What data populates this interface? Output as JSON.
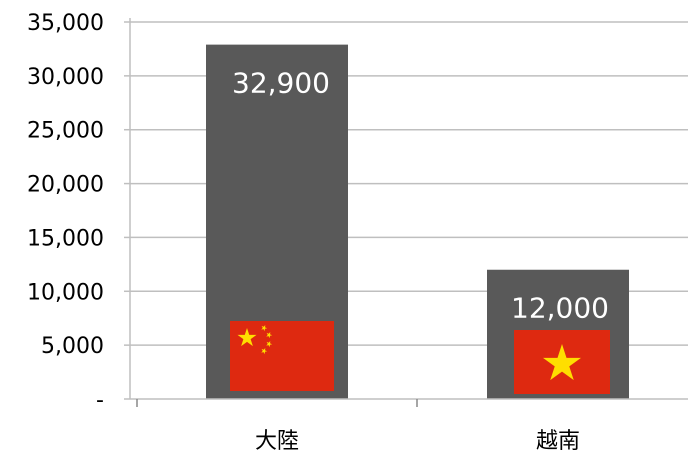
{
  "chart_data": {
    "type": "bar",
    "categories": [
      "大陸",
      "越南"
    ],
    "values": [
      32900,
      12000
    ],
    "value_labels": [
      "32,900",
      "12,000"
    ],
    "ylim": [
      0,
      35000
    ],
    "yticks": [
      0,
      5000,
      10000,
      15000,
      20000,
      25000,
      30000,
      35000
    ],
    "ytick_labels": [
      "-",
      "5,000",
      "10,000",
      "15,000",
      "20,000",
      "25,000",
      "30,000",
      "35,000"
    ],
    "grid": true,
    "bar_color": "#595959",
    "grid_color": "#bfbfbf",
    "flags": [
      "china-flag-icon",
      "vietnam-flag-icon"
    ],
    "flag_colors": {
      "red": "#de2910",
      "yellow": "#ffde00"
    }
  }
}
